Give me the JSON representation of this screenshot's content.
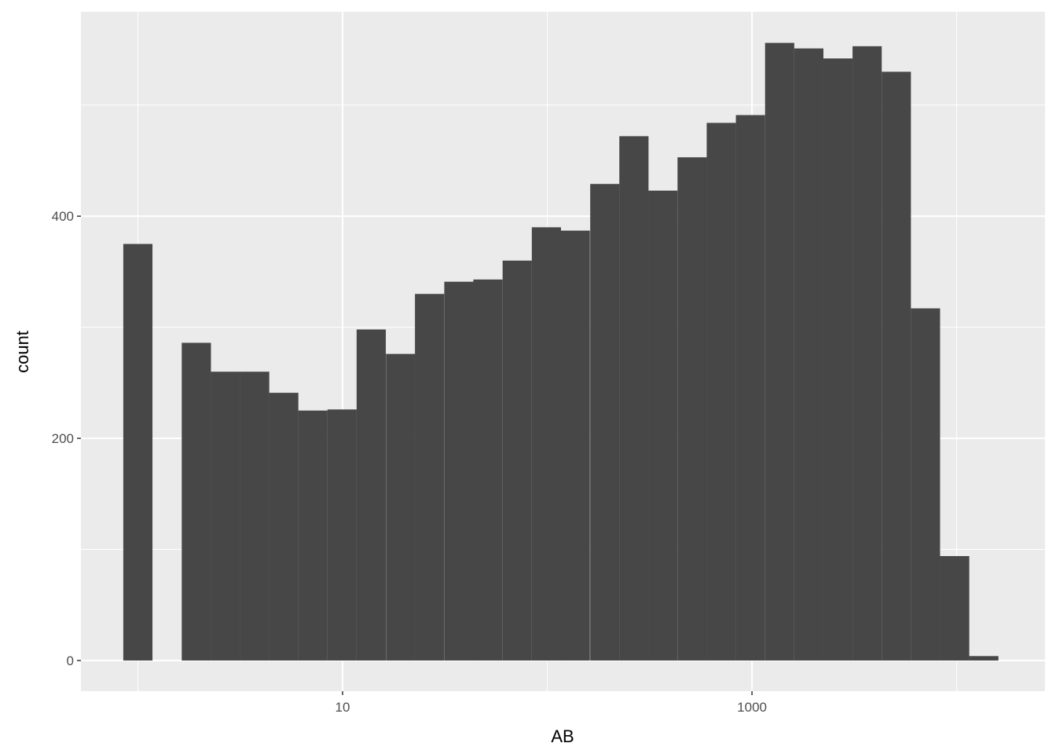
{
  "chart_data": {
    "type": "bar",
    "subtype": "histogram",
    "title": "",
    "xlabel": "AB",
    "ylabel": "count",
    "x_scale": "log10",
    "bin_width_log10": 0.1426,
    "xlim": [
      0.527,
      27000
    ],
    "ylim": [
      -27.6,
      584
    ],
    "x_ticks": [
      10,
      1000
    ],
    "x_tick_labels": [
      "10",
      "1000"
    ],
    "x_minor_grid": [
      1,
      100,
      10000
    ],
    "y_ticks": [
      0,
      200,
      400
    ],
    "y_tick_labels": [
      "0",
      "200",
      "400"
    ],
    "y_minor_grid": [
      100,
      300,
      500
    ],
    "grid": true,
    "legend": "none",
    "colors": {
      "panel": "#ebebeb",
      "grid": "#ffffff",
      "bar": "#474747"
    },
    "bins": [
      {
        "x": 1,
        "count": 375
      },
      {
        "x": 1.39,
        "count": 0
      },
      {
        "x": 1.93,
        "count": 286
      },
      {
        "x": 2.68,
        "count": 260
      },
      {
        "x": 3.72,
        "count": 260
      },
      {
        "x": 5.16,
        "count": 241
      },
      {
        "x": 7.16,
        "count": 225
      },
      {
        "x": 9.94,
        "count": 226
      },
      {
        "x": 13.8,
        "count": 298
      },
      {
        "x": 19.2,
        "count": 276
      },
      {
        "x": 26.6,
        "count": 330
      },
      {
        "x": 37.0,
        "count": 341
      },
      {
        "x": 51.3,
        "count": 343
      },
      {
        "x": 71.3,
        "count": 360
      },
      {
        "x": 99.0,
        "count": 390
      },
      {
        "x": 137,
        "count": 387
      },
      {
        "x": 191,
        "count": 429
      },
      {
        "x": 265,
        "count": 472
      },
      {
        "x": 367,
        "count": 423
      },
      {
        "x": 510,
        "count": 453
      },
      {
        "x": 708,
        "count": 484
      },
      {
        "x": 983,
        "count": 491
      },
      {
        "x": 1365,
        "count": 556
      },
      {
        "x": 1895,
        "count": 551
      },
      {
        "x": 2631,
        "count": 542
      },
      {
        "x": 3652,
        "count": 553
      },
      {
        "x": 5071,
        "count": 530
      },
      {
        "x": 7040,
        "count": 317
      },
      {
        "x": 9775,
        "count": 94
      },
      {
        "x": 13570,
        "count": 4
      }
    ]
  }
}
